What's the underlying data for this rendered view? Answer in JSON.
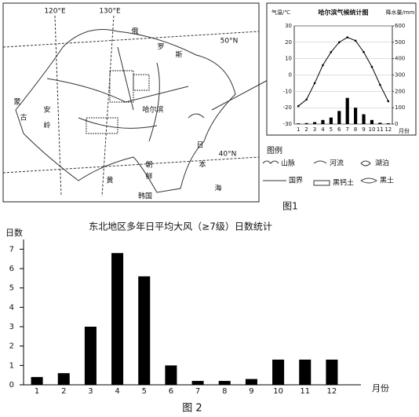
{
  "map": {
    "caption": "图1",
    "labels": [
      "120°E",
      "130°E",
      "50°N",
      "40°N",
      "蒙",
      "古",
      "安",
      "岭",
      "哈尔滨",
      "日",
      "本",
      "海",
      "黄",
      "朝",
      "鲜",
      "韩国",
      "俄",
      "罗",
      "斯"
    ],
    "legend_title": "图例",
    "legend": [
      "山脉",
      "河流",
      "湖泊",
      "国界",
      "黑钙土",
      "黑土"
    ]
  },
  "chart_data": [
    {
      "type": "combo",
      "title": "哈尔滨气候统计图",
      "y_label": "气温/℃",
      "y2_label": "降水量/mm",
      "x_label": "月份",
      "categories": [
        "1",
        "2",
        "3",
        "4",
        "5",
        "6",
        "7",
        "8",
        "9",
        "10",
        "11",
        "12"
      ],
      "ylim": [
        -30,
        30
      ],
      "yticks": [
        -30,
        -20,
        -10,
        0,
        10,
        20,
        30
      ],
      "y2lim": [
        0,
        600
      ],
      "y2ticks": [
        0,
        100,
        200,
        300,
        400,
        500,
        600
      ],
      "series": [
        {
          "mark": "line",
          "color": "#000000",
          "values": [
            -19,
            -15,
            -5,
            6,
            14,
            20,
            23,
            21,
            14,
            5,
            -6,
            -16
          ]
        },
        {
          "mark": "bar",
          "axis": "y2",
          "color": "#000000",
          "values": [
            4,
            6,
            12,
            25,
            40,
            80,
            160,
            100,
            60,
            25,
            8,
            5
          ]
        }
      ]
    },
    {
      "type": "bar",
      "title": "东北地区多年日平均大风（≥7级）日数统计",
      "y_label": "日数",
      "x_label": "月份",
      "caption": "图 2",
      "categories": [
        "1",
        "2",
        "3",
        "4",
        "5",
        "6",
        "7",
        "8",
        "9",
        "10",
        "11",
        "12"
      ],
      "values": [
        0.4,
        0.6,
        3.0,
        6.8,
        5.6,
        1.0,
        0.2,
        0.2,
        0.3,
        1.3,
        1.3,
        1.3
      ],
      "color": "#000000",
      "ylim": [
        0,
        7.5
      ],
      "yticks": [
        0,
        1,
        2,
        3,
        4,
        5,
        6,
        7
      ]
    }
  ]
}
